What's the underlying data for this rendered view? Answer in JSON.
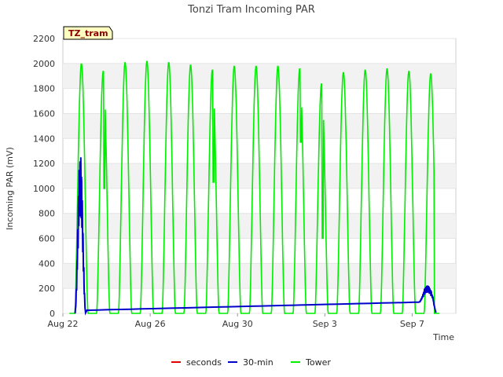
{
  "chart_data": {
    "type": "line",
    "title": "Tonzi Tram Incoming PAR",
    "xlabel": "Time",
    "ylabel": "Incoming PAR (mV)",
    "tag": "TZ_tram",
    "ylim": [
      0,
      2200
    ],
    "xlim": [
      0,
      18
    ],
    "yticks": [
      0,
      200,
      400,
      600,
      800,
      1000,
      1200,
      1400,
      1600,
      1800,
      2000,
      2200
    ],
    "xticks": [
      {
        "label": "Aug 22",
        "day": 0
      },
      {
        "label": "Aug 26",
        "day": 4
      },
      {
        "label": "Aug 30",
        "day": 8
      },
      {
        "label": "Sep 3",
        "day": 12
      },
      {
        "label": "Sep 7",
        "day": 16
      }
    ],
    "grid": true,
    "legend_position": "bottom-center",
    "series": [
      {
        "name": "seconds",
        "color": "#dd0000",
        "values": []
      },
      {
        "name": "30-min",
        "color": "#0000cc",
        "note": "daytime spike on Aug 22 (peak ~1270), nighttime baseline rising ~25 to ~90, daytime spike on Sep 7 (peak ~225)",
        "peaks": [
          {
            "day": 0.75,
            "value": 1270
          },
          {
            "day": 16.6,
            "value": 225
          }
        ],
        "baseline": [
          {
            "day": 1.1,
            "value": 25
          },
          {
            "day": 16.3,
            "value": 90
          }
        ]
      },
      {
        "name": "Tower",
        "color": "#00ee00",
        "daily_peaks": [
          {
            "day": 0.85,
            "value": 2000
          },
          {
            "day": 1.85,
            "value": 1940
          },
          {
            "day": 2.85,
            "value": 2010
          },
          {
            "day": 3.85,
            "value": 2020
          },
          {
            "day": 4.85,
            "value": 2010
          },
          {
            "day": 5.85,
            "value": 1990
          },
          {
            "day": 6.85,
            "value": 1950
          },
          {
            "day": 7.85,
            "value": 1980
          },
          {
            "day": 8.85,
            "value": 1980
          },
          {
            "day": 9.85,
            "value": 1980
          },
          {
            "day": 10.85,
            "value": 1960
          },
          {
            "day": 11.85,
            "value": 1840
          },
          {
            "day": 12.85,
            "value": 1930
          },
          {
            "day": 13.85,
            "value": 1950
          },
          {
            "day": 14.85,
            "value": 1960
          },
          {
            "day": 15.85,
            "value": 1940
          },
          {
            "day": 16.85,
            "value": 1920
          }
        ],
        "dips": [
          {
            "day": 1.9,
            "value": 1000
          },
          {
            "day": 6.9,
            "value": 1050
          },
          {
            "day": 10.9,
            "value": 1370
          },
          {
            "day": 11.9,
            "value": 600
          }
        ]
      }
    ]
  }
}
